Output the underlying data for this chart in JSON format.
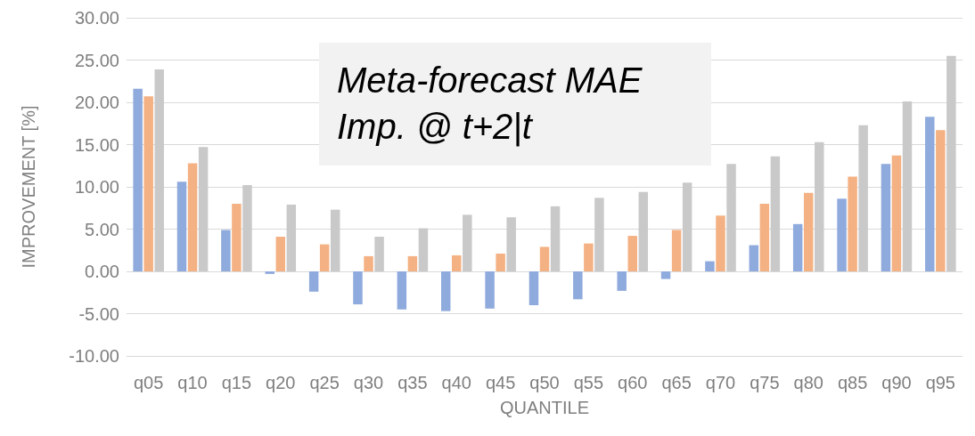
{
  "chart_data": {
    "type": "bar",
    "title": "Meta-forecast MAE Imp. @ t+2|t",
    "xlabel": "QUANTILE",
    "ylabel": "IMPROVEMENT [%]",
    "categories": [
      "q05",
      "q10",
      "q15",
      "q20",
      "q25",
      "q30",
      "q35",
      "q40",
      "q45",
      "q50",
      "q55",
      "q60",
      "q65",
      "q70",
      "q75",
      "q80",
      "q85",
      "q90",
      "q95"
    ],
    "series": [
      {
        "color": "#8faadc",
        "values": [
          21.6,
          10.6,
          4.9,
          -0.3,
          -2.4,
          -3.9,
          -4.5,
          -4.7,
          -4.4,
          -4.0,
          -3.3,
          -2.3,
          -0.9,
          1.2,
          3.1,
          5.6,
          8.6,
          12.7,
          18.3
        ]
      },
      {
        "color": "#f4b183",
        "values": [
          20.7,
          12.8,
          8.0,
          4.1,
          3.2,
          1.8,
          1.8,
          1.9,
          2.1,
          2.9,
          3.3,
          4.2,
          4.9,
          6.6,
          8.0,
          9.3,
          11.2,
          13.7,
          16.7
        ]
      },
      {
        "color": "#c9c9c9",
        "values": [
          23.9,
          14.7,
          10.2,
          7.9,
          7.3,
          4.1,
          5.1,
          6.7,
          6.4,
          7.7,
          8.7,
          9.4,
          10.5,
          12.7,
          13.6,
          15.3,
          17.3,
          20.1,
          25.5
        ]
      }
    ],
    "ylim": [
      -10,
      30
    ],
    "yticks": [
      {
        "value": -10,
        "label": "-10.00"
      },
      {
        "value": -5,
        "label": "-5.00"
      },
      {
        "value": 0,
        "label": "0.00"
      },
      {
        "value": 5,
        "label": "5.00"
      },
      {
        "value": 10,
        "label": "10.00"
      },
      {
        "value": 15,
        "label": "15.00"
      },
      {
        "value": 20,
        "label": "20.00"
      },
      {
        "value": 25,
        "label": "25.00"
      },
      {
        "value": 30,
        "label": "30.00"
      }
    ],
    "grid": "y"
  }
}
